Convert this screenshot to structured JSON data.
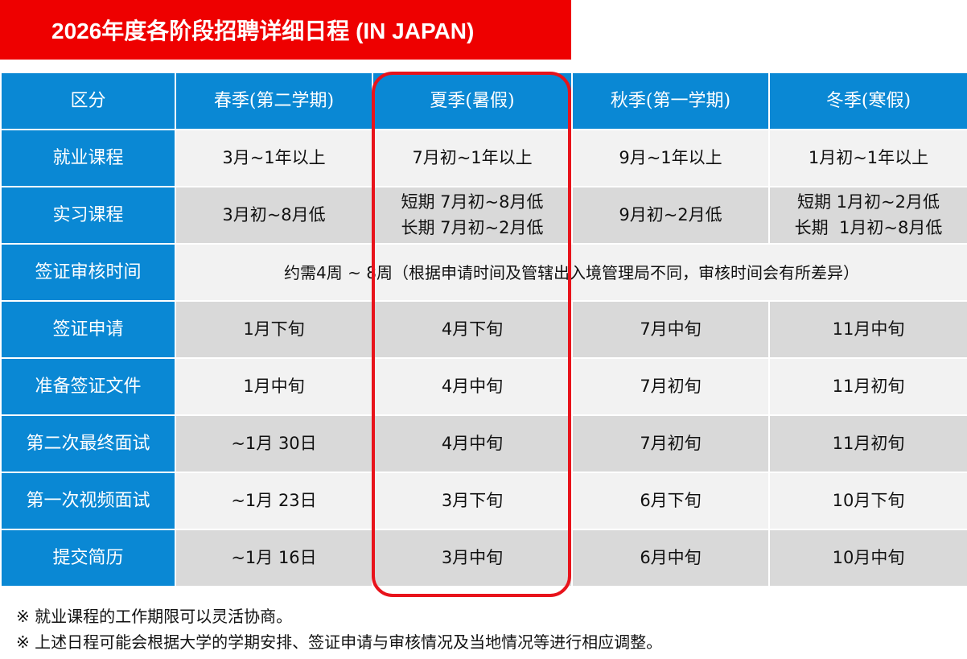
{
  "title": "2026年度各阶段招聘详细日程 (IN JAPAN)",
  "columns": [
    "区分",
    "春季(第二学期)",
    "夏季(暑假)",
    "秋季(第一学期)",
    "冬季(寒假)"
  ],
  "rows": [
    {
      "label": "就业课程",
      "cells": [
        "3月~1年以上",
        "7月初~1年以上",
        "9月~1年以上",
        "1月初~1年以上"
      ]
    },
    {
      "label": "实习课程",
      "cells": [
        "3月初~8月低",
        [
          "短期 7月初~8月低",
          "长期 7月初~2月低"
        ],
        "9月初~2月低",
        [
          "短期 1月初~2月低",
          "长期  1月初~8月低"
        ]
      ]
    },
    {
      "label": "签证审核时间",
      "merged": "约需4周 ~ 8周（根据申请时间及管辖出入境管理局不同，审核时间会有所差异）"
    },
    {
      "label": "签证申请",
      "cells": [
        "1月下旬",
        "4月下旬",
        "7月中旬",
        "11月中旬"
      ]
    },
    {
      "label": "准备签证文件",
      "cells": [
        "1月中旬",
        "4月中旬",
        "7月初旬",
        "11月初旬"
      ]
    },
    {
      "label": "第二次最终面试",
      "cells": [
        "~1月 30日",
        "4月中旬",
        "7月初旬",
        "11月初旬"
      ]
    },
    {
      "label": "第一次视频面试",
      "cells": [
        "~1月 23日",
        "3月下旬",
        "6月下旬",
        "10月下旬"
      ]
    },
    {
      "label": "提交简历",
      "cells": [
        "~1月 16日",
        "3月中旬",
        "6月中旬",
        "10月中旬"
      ]
    }
  ],
  "notes": [
    "※ 就业课程的工作期限可以灵活协商。",
    "※ 上述日程可能会根据大学的学期安排、签证申请与审核情况及当地情况等进行相应调整。"
  ],
  "colors": {
    "title_bg": "#ee0000",
    "header_bg": "#0a88d4",
    "row_light": "#f2f2f2",
    "row_dark": "#d9d9d9",
    "highlight": "#e8131b"
  }
}
